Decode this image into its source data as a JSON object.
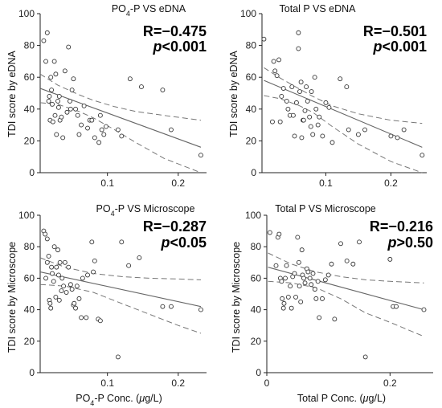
{
  "chart_data": [
    {
      "type": "scatter",
      "title": "PO4-P VS eDNA",
      "title_parts": [
        "PO",
        "4",
        "-P VS eDNA"
      ],
      "ylabel": "TDI score by eDNA",
      "xlabel": "",
      "xlim": [
        0.005,
        0.24
      ],
      "ylim": [
        0,
        100
      ],
      "xticks": [
        0.1,
        0.2
      ],
      "xtick_labels": [
        "0.1",
        "0.2"
      ],
      "yticks": [
        0,
        20,
        40,
        60,
        80,
        100
      ],
      "ytick_labels": [
        "0",
        "20",
        "40",
        "60",
        "80",
        "100"
      ],
      "annotation": {
        "r": "R=−0.475",
        "p_sym": "p",
        "p_rest": "<0.001"
      },
      "x": [
        0.01,
        0.013,
        0.015,
        0.017,
        0.018,
        0.019,
        0.02,
        0.021,
        0.022,
        0.023,
        0.025,
        0.026,
        0.027,
        0.028,
        0.03,
        0.031,
        0.032,
        0.033,
        0.035,
        0.037,
        0.04,
        0.043,
        0.045,
        0.047,
        0.048,
        0.05,
        0.052,
        0.055,
        0.058,
        0.06,
        0.063,
        0.067,
        0.072,
        0.075,
        0.078,
        0.082,
        0.088,
        0.09,
        0.092,
        0.095,
        0.098,
        0.115,
        0.12,
        0.132,
        0.148,
        0.178,
        0.19,
        0.232
      ],
      "y": [
        83,
        70,
        88,
        45,
        48,
        33,
        60,
        52,
        43,
        32,
        70,
        36,
        62,
        24,
        45,
        41,
        48,
        33,
        35,
        22,
        64,
        38,
        79,
        45,
        40,
        52,
        59,
        40,
        36,
        24,
        30,
        42,
        28,
        33,
        33,
        22,
        19,
        36,
        27,
        24,
        29,
        27,
        23,
        59,
        54,
        52,
        27,
        11
      ],
      "fit": {
        "x0": 0.005,
        "y0": 53,
        "x1": 0.232,
        "y1": 16
      },
      "ci_upper": [
        [
          0.005,
          62
        ],
        [
          0.03,
          55
        ],
        [
          0.06,
          49
        ],
        [
          0.08,
          45.5
        ],
        [
          0.11,
          41.5
        ],
        [
          0.14,
          38.5
        ],
        [
          0.18,
          36
        ],
        [
          0.232,
          33
        ]
      ],
      "ci_lower": [
        [
          0.005,
          44
        ],
        [
          0.03,
          43
        ],
        [
          0.06,
          38.5
        ],
        [
          0.08,
          34.5
        ],
        [
          0.11,
          27
        ],
        [
          0.14,
          19
        ],
        [
          0.18,
          9
        ],
        [
          0.232,
          0
        ]
      ]
    },
    {
      "type": "scatter",
      "title": "Total P VS eDNA",
      "title_parts": [
        "Total P VS eDNA",
        "",
        ""
      ],
      "ylabel": "TDI score by eDNA",
      "xlabel": "",
      "xlim": [
        0.002,
        0.255
      ],
      "ylim": [
        0,
        100
      ],
      "xticks": [
        0.1,
        0.2
      ],
      "xtick_labels": [
        "0.1",
        "0.2"
      ],
      "yticks": [
        0,
        20,
        40,
        60,
        80,
        100
      ],
      "ytick_labels": [
        "0",
        "20",
        "40",
        "60",
        "80",
        "100"
      ],
      "annotation": {
        "r": "R=−0.501",
        "p_sym": "p",
        "p_rest": "<0.001"
      },
      "x": [
        0.005,
        0.018,
        0.02,
        0.022,
        0.025,
        0.028,
        0.03,
        0.032,
        0.035,
        0.04,
        0.042,
        0.045,
        0.048,
        0.05,
        0.052,
        0.055,
        0.058,
        0.058,
        0.06,
        0.062,
        0.063,
        0.065,
        0.066,
        0.068,
        0.07,
        0.072,
        0.075,
        0.077,
        0.078,
        0.08,
        0.083,
        0.085,
        0.088,
        0.09,
        0.095,
        0.1,
        0.105,
        0.11,
        0.122,
        0.132,
        0.135,
        0.15,
        0.16,
        0.2,
        0.21,
        0.22,
        0.248
      ],
      "y": [
        84,
        32,
        70,
        64,
        61,
        71,
        32,
        48,
        53,
        45,
        40,
        36,
        54,
        36,
        23,
        44,
        88,
        78,
        51,
        57,
        22,
        33,
        33,
        39,
        54,
        45,
        35,
        29,
        51,
        24,
        60,
        40,
        30,
        35,
        23,
        44,
        41,
        19,
        59,
        54,
        27,
        24,
        27,
        23,
        22,
        27,
        11
      ],
      "fit": {
        "x0": 0.005,
        "y0": 58,
        "x1": 0.248,
        "y1": 16
      },
      "ci_upper": [
        [
          0.005,
          66
        ],
        [
          0.03,
          59.5
        ],
        [
          0.06,
          52.5
        ],
        [
          0.08,
          48
        ],
        [
          0.11,
          42
        ],
        [
          0.15,
          37
        ],
        [
          0.2,
          33
        ],
        [
          0.248,
          31
        ]
      ],
      "ci_lower": [
        [
          0.005,
          48.5
        ],
        [
          0.03,
          46.5
        ],
        [
          0.06,
          42
        ],
        [
          0.08,
          38
        ],
        [
          0.11,
          29
        ],
        [
          0.15,
          18
        ],
        [
          0.2,
          7
        ],
        [
          0.248,
          0
        ]
      ]
    },
    {
      "type": "scatter",
      "title": "PO4-P VS Microscope",
      "title_parts": [
        "PO",
        "4",
        "-P VS Microscope"
      ],
      "ylabel": "TDI score by Microscope",
      "xlabel": "PO4-P Conc. (μg/L)",
      "xlabel_parts": [
        "PO",
        "4",
        "-P Conc. (",
        "μ",
        "g/L)"
      ],
      "xlim": [
        0.005,
        0.24
      ],
      "ylim": [
        0,
        100
      ],
      "xticks": [
        0.1,
        0.2
      ],
      "xtick_labels": [
        "0.1",
        "0.2"
      ],
      "yticks": [
        0,
        20,
        40,
        60,
        80,
        100
      ],
      "ytick_labels": [
        "0",
        "20",
        "40",
        "60",
        "80",
        "100"
      ],
      "annotation": {
        "r": "R=−0.287",
        "p_sym": "p",
        "p_rest": "<0.05"
      },
      "x": [
        0.01,
        0.012,
        0.013,
        0.015,
        0.015,
        0.017,
        0.018,
        0.019,
        0.02,
        0.021,
        0.022,
        0.024,
        0.025,
        0.027,
        0.028,
        0.03,
        0.031,
        0.032,
        0.033,
        0.035,
        0.036,
        0.038,
        0.04,
        0.042,
        0.045,
        0.048,
        0.05,
        0.052,
        0.053,
        0.055,
        0.057,
        0.06,
        0.063,
        0.065,
        0.07,
        0.072,
        0.078,
        0.08,
        0.082,
        0.087,
        0.09,
        0.115,
        0.12,
        0.13,
        0.145,
        0.178,
        0.19,
        0.232
      ],
      "y": [
        90,
        88,
        60,
        85,
        70,
        74,
        46,
        44,
        41,
        67,
        63,
        58,
        80,
        48,
        67,
        78,
        62,
        46,
        70,
        52,
        60,
        55,
        70,
        51,
        67,
        56,
        53,
        43,
        44,
        41,
        55,
        47,
        35,
        60,
        35,
        62,
        83,
        64,
        71,
        34,
        33,
        10,
        83,
        68,
        73,
        42,
        42,
        40
      ],
      "fit": {
        "x0": 0.005,
        "y0": 64,
        "x1": 0.232,
        "y1": 42
      },
      "ci_upper": [
        [
          0.005,
          73
        ],
        [
          0.04,
          67
        ],
        [
          0.08,
          63
        ],
        [
          0.12,
          61
        ],
        [
          0.16,
          60
        ],
        [
          0.2,
          59.5
        ],
        [
          0.232,
          59
        ]
      ],
      "ci_lower": [
        [
          0.005,
          56
        ],
        [
          0.04,
          55
        ],
        [
          0.08,
          51
        ],
        [
          0.12,
          44
        ],
        [
          0.16,
          37
        ],
        [
          0.2,
          30
        ],
        [
          0.232,
          25
        ]
      ]
    },
    {
      "type": "scatter",
      "title": "Total P VS Microscope",
      "title_parts": [
        "Total P VS Microscope",
        "",
        ""
      ],
      "ylabel": "TDI score by Microscope",
      "xlabel": "Total P Conc. (μg/L)",
      "xlabel_parts": [
        "Total P Conc. (",
        "",
        "",
        "μ",
        "g/L)"
      ],
      "xlim": [
        0.0,
        0.27
      ],
      "ylim": [
        0,
        100
      ],
      "xticks": [
        0,
        0.2
      ],
      "xtick_labels": [
        "0",
        "0.2"
      ],
      "yticks": [
        0,
        20,
        40,
        60,
        80,
        100
      ],
      "ytick_labels": [
        "0",
        "20",
        "40",
        "60",
        "80",
        "100"
      ],
      "annotation": {
        "r": "R=−0.216",
        "p_sym": "p",
        "p_rest": ">0.50"
      },
      "x": [
        0.005,
        0.015,
        0.018,
        0.02,
        0.022,
        0.024,
        0.025,
        0.027,
        0.028,
        0.03,
        0.032,
        0.035,
        0.038,
        0.04,
        0.042,
        0.045,
        0.047,
        0.05,
        0.052,
        0.053,
        0.055,
        0.057,
        0.058,
        0.06,
        0.062,
        0.065,
        0.067,
        0.07,
        0.072,
        0.075,
        0.078,
        0.08,
        0.083,
        0.085,
        0.09,
        0.095,
        0.1,
        0.105,
        0.11,
        0.12,
        0.13,
        0.14,
        0.15,
        0.16,
        0.2,
        0.205,
        0.21,
        0.255
      ],
      "y": [
        89,
        68,
        86,
        88,
        60,
        58,
        47,
        41,
        44,
        60,
        68,
        48,
        55,
        41,
        61,
        63,
        48,
        86,
        70,
        55,
        45,
        78,
        62,
        60,
        57,
        66,
        64,
        60,
        56,
        63,
        53,
        47,
        58,
        35,
        47,
        59,
        62,
        69,
        34,
        82,
        71,
        69,
        83,
        10,
        72,
        42,
        42,
        40
      ],
      "fit": {
        "x0": 0.002,
        "y0": 67,
        "x1": 0.255,
        "y1": 40
      },
      "ci_upper": [
        [
          0.002,
          76
        ],
        [
          0.04,
          69
        ],
        [
          0.08,
          64
        ],
        [
          0.12,
          61
        ],
        [
          0.16,
          59
        ],
        [
          0.2,
          58
        ],
        [
          0.255,
          57
        ]
      ],
      "ci_lower": [
        [
          0.002,
          58
        ],
        [
          0.04,
          57
        ],
        [
          0.08,
          54
        ],
        [
          0.12,
          47
        ],
        [
          0.16,
          38
        ],
        [
          0.2,
          32
        ],
        [
          0.255,
          23
        ]
      ]
    }
  ]
}
